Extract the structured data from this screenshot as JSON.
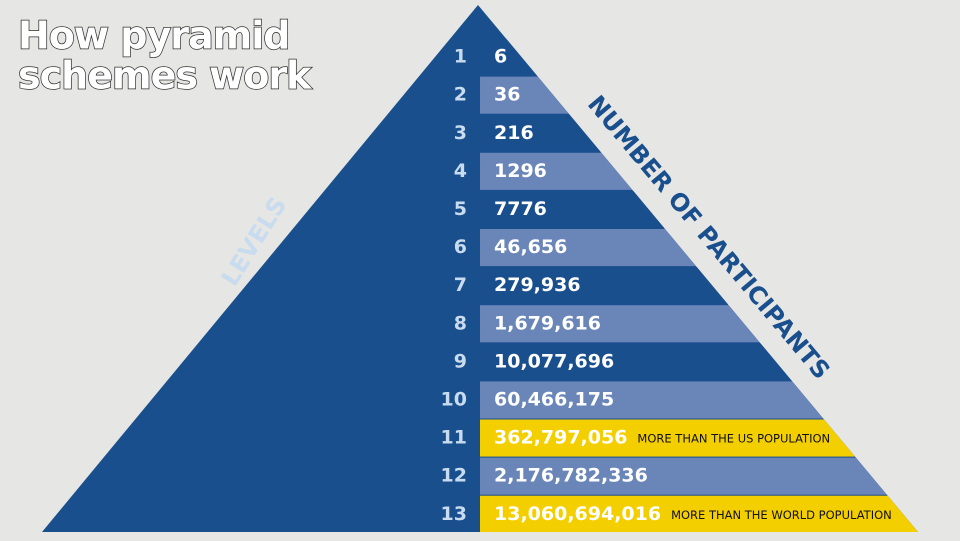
{
  "title": {
    "lines": [
      "How pyramid",
      "schemes work"
    ]
  },
  "labels": {
    "levels": "LEVELS",
    "participants": "NUMBER OF PARTICIPANTS"
  },
  "rows": [
    {
      "level": "1",
      "participants": "6"
    },
    {
      "level": "2",
      "participants": "36"
    },
    {
      "level": "3",
      "participants": "216"
    },
    {
      "level": "4",
      "participants": "1296"
    },
    {
      "level": "5",
      "participants": "7776"
    },
    {
      "level": "6",
      "participants": "46,656"
    },
    {
      "level": "7",
      "participants": "279,936"
    },
    {
      "level": "8",
      "participants": "1,679,616"
    },
    {
      "level": "9",
      "participants": "10,077,696"
    },
    {
      "level": "10",
      "participants": "60,466,175"
    },
    {
      "level": "11",
      "participants": "362,797,056",
      "note": "MORE THAN THE US POPULATION"
    },
    {
      "level": "12",
      "participants": "2,176,782,336"
    },
    {
      "level": "13",
      "participants": "13,060,694,016",
      "note": "MORE THAN THE WORLD POPULATION"
    }
  ]
}
